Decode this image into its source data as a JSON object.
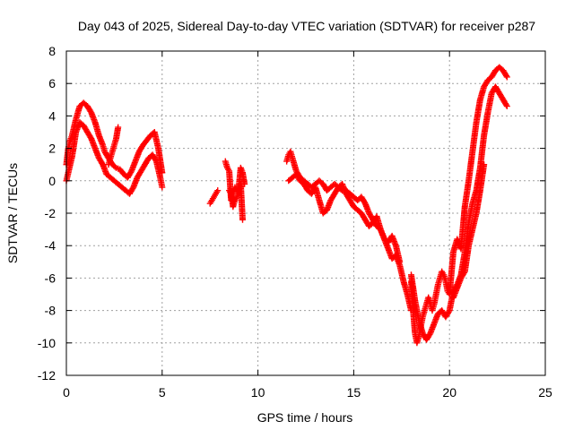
{
  "chart_data": {
    "type": "scatter",
    "title": "Day 043 of 2025, Sidereal Day-to-day VTEC variation (SDTVAR) for receiver p287",
    "xlabel": "GPS time / hours",
    "ylabel": "SDTVAR / TECUs",
    "xlim": [
      0,
      25
    ],
    "ylim": [
      -12,
      8
    ],
    "xticks": [
      0,
      5,
      10,
      15,
      20,
      25
    ],
    "yticks": [
      -12,
      -10,
      -8,
      -6,
      -4,
      -2,
      0,
      2,
      4,
      6,
      8
    ],
    "grid": true,
    "marker": "+",
    "marker_color": "#ff0000",
    "series": [
      {
        "name": "SDTVAR",
        "segments": [
          {
            "x": [
              0.0,
              0.1,
              0.2,
              0.3,
              0.5,
              0.7,
              0.9,
              1.1,
              1.3,
              1.5,
              1.7,
              1.9,
              2.0,
              2.2,
              2.4,
              2.6,
              2.8,
              3.0,
              3.2,
              3.4,
              3.6,
              3.8,
              4.0,
              4.2,
              4.4,
              4.6,
              4.8,
              5.0
            ],
            "y": [
              1.0,
              2.0,
              2.5,
              2.8,
              3.8,
              4.6,
              4.8,
              4.6,
              4.2,
              3.6,
              2.8,
              2.2,
              1.8,
              1.4,
              1.0,
              0.8,
              0.7,
              0.4,
              0.2,
              0.6,
              1.2,
              1.8,
              2.2,
              2.5,
              2.8,
              3.0,
              2.0,
              0.5
            ]
          },
          {
            "x": [
              0.0,
              0.1,
              0.3,
              0.5,
              0.7,
              0.9,
              1.1,
              1.3,
              1.5,
              1.7,
              1.9,
              2.1,
              2.3,
              2.5,
              2.7,
              2.9,
              3.1,
              3.3,
              3.5,
              3.7,
              3.9,
              4.1,
              4.3,
              4.5,
              4.7,
              4.9,
              5.0
            ],
            "y": [
              0.0,
              0.5,
              1.5,
              3.0,
              3.6,
              3.4,
              3.0,
              2.6,
              2.0,
              1.4,
              1.0,
              0.4,
              0.2,
              0.0,
              -0.2,
              -0.4,
              -0.6,
              -0.8,
              -0.4,
              0.2,
              0.6,
              1.0,
              1.4,
              1.6,
              1.2,
              0.2,
              -0.4
            ]
          },
          {
            "x": [
              2.2,
              2.3,
              2.4,
              2.5,
              2.6,
              2.7
            ],
            "y": [
              1.0,
              1.4,
              1.8,
              2.2,
              2.6,
              3.3
            ]
          },
          {
            "x": [
              7.5,
              7.6,
              7.7,
              7.8,
              7.9
            ],
            "y": [
              -1.4,
              -1.2,
              -1.0,
              -0.8,
              -0.6
            ]
          },
          {
            "x": [
              8.3,
              8.4,
              8.5,
              8.6,
              8.7,
              8.8,
              8.9,
              9.0,
              9.1,
              9.2,
              9.3
            ],
            "y": [
              1.2,
              0.8,
              0.6,
              -1.2,
              -0.8,
              -0.4,
              -0.6,
              -0.4,
              0.8,
              0.5,
              -0.2
            ]
          },
          {
            "x": [
              8.5,
              8.6,
              8.7,
              8.8,
              8.9,
              9.0,
              9.1,
              9.2
            ],
            "y": [
              -0.6,
              -0.8,
              -1.6,
              -1.2,
              -1.0,
              -0.6,
              -0.2,
              -2.4
            ]
          },
          {
            "x": [
              11.5,
              11.6,
              11.7,
              11.8,
              12.0,
              12.2,
              12.4,
              12.6,
              12.8,
              13.0,
              13.2,
              13.4,
              13.6,
              13.8,
              14.0,
              14.2,
              14.4,
              14.6,
              14.8,
              15.0,
              15.2,
              15.4,
              15.6,
              15.8,
              16.0,
              16.2,
              16.4,
              16.6,
              16.8,
              17.0,
              17.2,
              17.4,
              17.6,
              17.8,
              18.0
            ],
            "y": [
              1.2,
              1.6,
              1.8,
              1.4,
              0.6,
              0.2,
              0.0,
              -0.2,
              -0.4,
              -0.2,
              0.0,
              -0.2,
              -0.6,
              -0.4,
              -0.2,
              -0.4,
              -0.6,
              -0.6,
              -0.8,
              -1.0,
              -1.2,
              -1.0,
              -1.4,
              -2.0,
              -2.4,
              -2.8,
              -3.0,
              -3.6,
              -4.2,
              -4.8,
              -4.6,
              -5.2,
              -6.2,
              -7.0,
              -8.0
            ]
          },
          {
            "x": [
              11.6,
              11.8,
              12.0,
              12.2,
              12.4,
              12.6,
              12.8,
              13.0,
              13.2,
              13.4,
              13.6,
              13.8,
              14.0,
              14.2,
              14.4,
              14.6,
              14.8,
              15.0,
              15.2,
              15.4,
              15.6,
              15.8,
              16.0,
              16.2,
              16.4,
              16.6,
              16.8,
              17.0,
              17.2,
              17.4
            ],
            "y": [
              0.0,
              0.2,
              0.4,
              0.0,
              -0.2,
              -0.6,
              -0.8,
              -0.4,
              -1.2,
              -2.0,
              -1.8,
              -1.2,
              -0.8,
              -0.4,
              -0.2,
              -0.8,
              -1.2,
              -1.6,
              -1.8,
              -2.0,
              -2.4,
              -2.8,
              -2.6,
              -2.2,
              -3.0,
              -3.6,
              -3.8,
              -3.4,
              -4.0,
              -5.0
            ]
          },
          {
            "x": [
              18.0,
              18.1,
              18.2,
              18.3,
              18.4,
              18.5,
              18.6,
              18.7,
              18.8,
              18.9,
              19.0,
              19.1,
              19.2,
              19.3,
              19.4,
              19.5,
              19.6,
              19.7,
              19.8,
              19.9,
              20.0,
              20.2,
              20.4,
              20.6,
              20.8,
              21.0,
              21.2,
              21.4,
              21.6,
              21.8,
              22.0,
              22.2,
              22.4,
              22.6,
              22.8,
              23.0
            ],
            "y": [
              -6.2,
              -8.0,
              -9.4,
              -10.0,
              -9.6,
              -9.0,
              -8.4,
              -8.0,
              -7.6,
              -7.2,
              -7.6,
              -8.0,
              -7.6,
              -7.0,
              -6.4,
              -6.0,
              -5.6,
              -5.8,
              -6.2,
              -6.8,
              -7.0,
              -4.4,
              -3.6,
              -4.2,
              -1.6,
              0.0,
              1.8,
              3.6,
              5.0,
              5.8,
              6.2,
              6.4,
              6.8,
              7.0,
              6.8,
              6.4
            ]
          },
          {
            "x": [
              18.0,
              18.2,
              18.4,
              18.6,
              18.8,
              19.0,
              19.2,
              19.4,
              19.6,
              19.8,
              20.0,
              20.2,
              20.4,
              20.6,
              20.8,
              21.0,
              21.2,
              21.4,
              21.6,
              21.8,
              22.0,
              22.2,
              22.4,
              22.6,
              22.8,
              23.0
            ],
            "y": [
              -5.8,
              -7.4,
              -8.6,
              -9.4,
              -9.8,
              -9.4,
              -8.8,
              -8.2,
              -8.0,
              -8.4,
              -8.0,
              -6.8,
              -6.4,
              -5.8,
              -4.4,
              -2.6,
              -1.4,
              -0.6,
              0.8,
              2.8,
              4.2,
              5.4,
              5.8,
              5.4,
              5.0,
              4.6
            ]
          },
          {
            "x": [
              20.2,
              20.4,
              20.6,
              20.8,
              21.0,
              21.2,
              21.4,
              21.6,
              21.8
            ],
            "y": [
              -7.2,
              -6.6,
              -6.0,
              -5.6,
              -4.0,
              -3.0,
              -2.0,
              -0.6,
              1.0
            ]
          }
        ]
      }
    ]
  }
}
